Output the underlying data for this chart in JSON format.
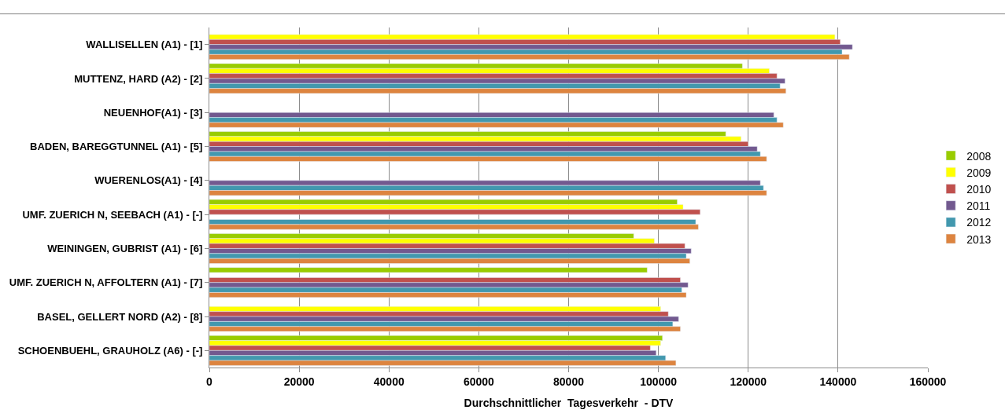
{
  "chart_data": {
    "type": "bar",
    "orientation": "horizontal",
    "xlabel": "Durchschnittlicher  Tagesverkehr  - DTV",
    "categories": [
      "WALLISELLEN (A1) - [1]",
      "MUTTENZ, HARD (A2) - [2]",
      "NEUENHOF(A1) - [3]",
      "BADEN, BAREGGTUNNEL (A1) - [5]",
      "WUERENLOS(A1) - [4]",
      "UMF. ZUERICH N, SEEBACH (A1) - [-]",
      "WEININGEN, GUBRIST (A1) - [6]",
      "UMF. ZUERICH N, AFFOLTERN (A1) - [7]",
      "BASEL, GELLERT NORD (A2) - [8]",
      "SCHOENBUEHL, GRAUHOLZ (A6) - [-]"
    ],
    "series": [
      {
        "name": "2008",
        "color": "#99cc00",
        "values": [
          null,
          118700,
          null,
          115000,
          null,
          104200,
          94500,
          97500,
          null,
          100900
        ]
      },
      {
        "name": "2009",
        "color": "#ffff00",
        "values": [
          139300,
          124700,
          null,
          118400,
          null,
          105500,
          99100,
          null,
          100500,
          100500
        ]
      },
      {
        "name": "2010",
        "color": "#c0504d",
        "values": [
          140500,
          126400,
          null,
          120000,
          null,
          109300,
          105900,
          104900,
          102200,
          98200
        ]
      },
      {
        "name": "2011",
        "color": "#72598f",
        "values": [
          143200,
          128200,
          125700,
          122000,
          122700,
          null,
          107300,
          106600,
          104500,
          99500
        ]
      },
      {
        "name": "2012",
        "color": "#4298ae",
        "values": [
          140900,
          127100,
          126400,
          122700,
          123400,
          108300,
          106200,
          105200,
          103200,
          101600
        ]
      },
      {
        "name": "2013",
        "color": "#dd843f",
        "values": [
          142500,
          128400,
          127800,
          124100,
          124100,
          108900,
          107000,
          106200,
          104900,
          103900
        ]
      }
    ],
    "xlim": [
      0,
      160000
    ],
    "xticks": [
      0,
      20000,
      40000,
      60000,
      80000,
      100000,
      120000,
      140000,
      160000
    ],
    "grid": "x",
    "legend": "right"
  }
}
